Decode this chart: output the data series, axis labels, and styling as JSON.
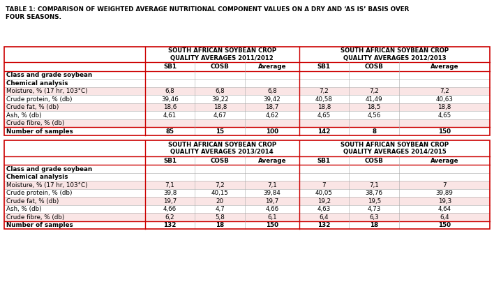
{
  "title": "TABLE 1: COMPARISON OF WEIGHTED AVERAGE NUTRITIONAL COMPONENT VALUES ON A DRY AND ‘AS IS’ BASIS OVER\nFOUR SEASONS.",
  "bg_color": "#FFFFFF",
  "red": "#CC0000",
  "pink": "#FAE5E5",
  "white": "#FFFFFF",
  "header1_text": "SOUTH AFRICAN SOYBEAN CROP\nQUALITY AVERAGES 2011/2012",
  "header2_text": "SOUTH AFRICAN SOYBEAN CROP\nQUALITY AVERAGES 2012/2013",
  "header3_text": "SOUTH AFRICAN SOYBEAN CROP\nQUALITY AVERAGES 2013/2014",
  "header4_text": "SOUTH AFRICAN SOYBEAN CROP\nQUALITY AVERAGES 2014/2015",
  "row_labels": [
    "Class and grade soybean",
    "Chemical analysis",
    "Moisture, % (17 hr, 103°C)",
    "Crude protein, % (db)",
    "Crude fat, % (db)",
    "Ash, % (db)",
    "Crude fibre, % (db)",
    "Number of samples"
  ],
  "table1_data": [
    [
      "",
      "",
      ""
    ],
    [
      "",
      "",
      ""
    ],
    [
      "6,8",
      "6,8",
      "6,8"
    ],
    [
      "39,46",
      "39,22",
      "39,42"
    ],
    [
      "18,6",
      "18,8",
      "18,7"
    ],
    [
      "4,61",
      "4,67",
      "4,62"
    ],
    [
      "",
      "",
      ""
    ],
    [
      "85",
      "15",
      "100"
    ]
  ],
  "table2_data": [
    [
      "",
      "",
      ""
    ],
    [
      "",
      "",
      ""
    ],
    [
      "7,2",
      "7,2",
      "7,2"
    ],
    [
      "40,58",
      "41,49",
      "40,63"
    ],
    [
      "18,8",
      "18,5",
      "18,8"
    ],
    [
      "4,65",
      "4,56",
      "4,65"
    ],
    [
      "",
      "",
      ""
    ],
    [
      "142",
      "8",
      "150"
    ]
  ],
  "table3_data": [
    [
      "",
      "",
      ""
    ],
    [
      "",
      "",
      ""
    ],
    [
      "7,1",
      "7,2",
      "7,1"
    ],
    [
      "39,8",
      "40,15",
      "39,84"
    ],
    [
      "19,7",
      "20",
      "19,7"
    ],
    [
      "4,66",
      "4,7",
      "4,66"
    ],
    [
      "6,2",
      "5,8",
      "6,1"
    ],
    [
      "132",
      "18",
      "150"
    ]
  ],
  "table4_data": [
    [
      "",
      "",
      ""
    ],
    [
      "",
      "",
      ""
    ],
    [
      "7",
      "7,1",
      "7"
    ],
    [
      "40,05",
      "38,76",
      "39,89"
    ],
    [
      "19,2",
      "19,5",
      "19,3"
    ],
    [
      "4,63",
      "4,73",
      "4,64"
    ],
    [
      "6,4",
      "6,3",
      "6,4"
    ],
    [
      "132",
      "18",
      "150"
    ]
  ],
  "row_is_pink": [
    false,
    false,
    true,
    false,
    true,
    false,
    true,
    false
  ],
  "row_is_bold": [
    true,
    true,
    false,
    false,
    false,
    false,
    false,
    true
  ]
}
